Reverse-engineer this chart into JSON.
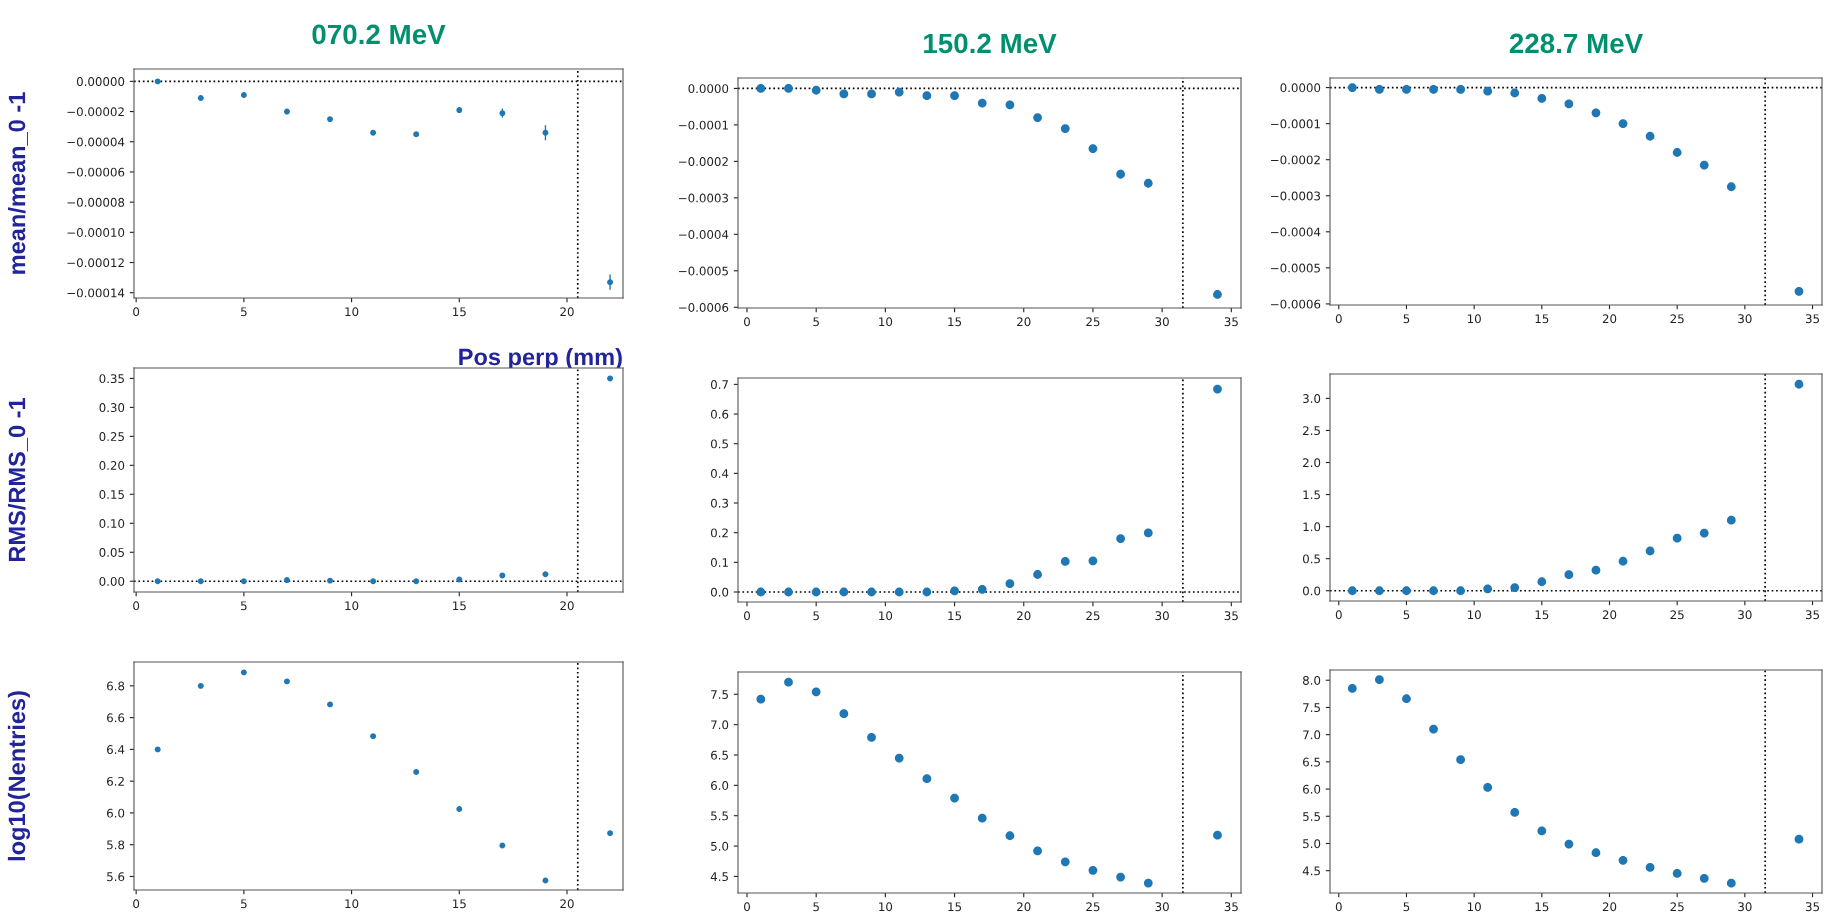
{
  "chart_data": [
    {
      "type": "scatter",
      "title": "070.2 MeV",
      "ylabel": "mean/mean_0 -1",
      "xlabel": "Pos perp (mm)",
      "marker": "circle",
      "grid": false,
      "x": [
        1,
        3,
        5,
        7,
        9,
        11,
        13,
        15,
        17,
        19,
        22
      ],
      "series": [
        {
          "color": "#1f77b4",
          "values": [
            0,
            -1.1e-05,
            -9e-06,
            -2e-05,
            -2.5e-05,
            -3.4e-05,
            -3.5e-05,
            -1.9e-05,
            -2.1e-05,
            -3.4e-05,
            -0.000133
          ],
          "errors": [
            null,
            null,
            null,
            null,
            null,
            null,
            1.5e-06,
            2e-06,
            3e-06,
            5e-06,
            5e-06
          ]
        }
      ],
      "xlim": [
        -0.1,
        22.6
      ],
      "xticks": [
        0,
        5,
        10,
        15,
        20
      ],
      "ylim": [
        -0.0001435,
        8.2e-06
      ],
      "yticks": [
        {
          "value": 0,
          "label": "0.00000"
        },
        {
          "value": -2e-05,
          "label": "−0.00002"
        },
        {
          "value": -4e-05,
          "label": "−0.00004"
        },
        {
          "value": -6e-05,
          "label": "−0.00006"
        },
        {
          "value": -8e-05,
          "label": "−0.00008"
        },
        {
          "value": -0.0001,
          "label": "−0.00010"
        },
        {
          "value": -0.00012,
          "label": "−0.00012"
        },
        {
          "value": -0.00014,
          "label": "−0.00014"
        }
      ],
      "ref_lines": [
        {
          "axis": "x",
          "value": 20.5,
          "color": "#000000",
          "line_style": "dotted"
        },
        {
          "axis": "y",
          "value": 0,
          "color": "#000000",
          "line_style": "dotted"
        }
      ]
    },
    {
      "type": "scatter",
      "title": "150.2 MeV",
      "marker": "circle",
      "grid": false,
      "x": [
        1,
        3,
        5,
        7,
        9,
        11,
        13,
        15,
        17,
        19,
        21,
        23,
        25,
        27,
        29,
        34
      ],
      "series": [
        {
          "color": "#1f77b4",
          "values": [
            0,
            0,
            -5e-06,
            -1.5e-05,
            -1.5e-05,
            -1e-05,
            -2e-05,
            -2e-05,
            -4e-05,
            -4.5e-05,
            -8e-05,
            -0.00011,
            -0.000165,
            -0.000235,
            -0.00026,
            -0.000565
          ],
          "errors": [
            null,
            null,
            null,
            null,
            null,
            null,
            null,
            null,
            null,
            null,
            null,
            5e-06,
            7e-06,
            1.2e-05,
            1.2e-05,
            5e-06
          ]
        }
      ],
      "xlim": [
        -0.65,
        35.7
      ],
      "xticks": [
        0,
        5,
        10,
        15,
        20,
        25,
        30,
        35
      ],
      "ylim": [
        -0.000602,
        2.86e-05
      ],
      "yticks": [
        {
          "value": 0,
          "label": "0.0000"
        },
        {
          "value": -0.0001,
          "label": "−0.0001"
        },
        {
          "value": -0.0002,
          "label": "−0.0002"
        },
        {
          "value": -0.0003,
          "label": "−0.0003"
        },
        {
          "value": -0.0004,
          "label": "−0.0004"
        },
        {
          "value": -0.0005,
          "label": "−0.0005"
        },
        {
          "value": -0.0006,
          "label": "−0.0006"
        }
      ],
      "ref_lines": [
        {
          "axis": "x",
          "value": 31.5,
          "color": "#000000",
          "line_style": "dotted"
        },
        {
          "axis": "y",
          "value": 0,
          "color": "#000000",
          "line_style": "dotted"
        }
      ]
    },
    {
      "type": "scatter",
      "title": "228.7 MeV",
      "marker": "circle",
      "grid": false,
      "x": [
        1,
        3,
        5,
        7,
        9,
        11,
        13,
        15,
        17,
        19,
        21,
        23,
        25,
        27,
        29,
        34
      ],
      "series": [
        {
          "color": "#1f77b4",
          "values": [
            0,
            -5e-06,
            -5e-06,
            -5e-06,
            -5e-06,
            -1e-05,
            -1.5e-05,
            -3e-05,
            -4.5e-05,
            -7e-05,
            -0.0001,
            -0.000135,
            -0.00018,
            -0.000215,
            -0.000275,
            -0.000565
          ]
        }
      ],
      "xlim": [
        -0.65,
        35.7
      ],
      "xticks": [
        0,
        5,
        10,
        15,
        20,
        25,
        30,
        35
      ],
      "ylim": [
        -0.000603,
        2.66e-05
      ],
      "yticks": [
        {
          "value": 0,
          "label": "0.0000"
        },
        {
          "value": -0.0001,
          "label": "−0.0001"
        },
        {
          "value": -0.0002,
          "label": "−0.0002"
        },
        {
          "value": -0.0003,
          "label": "−0.0003"
        },
        {
          "value": -0.0004,
          "label": "−0.0004"
        },
        {
          "value": -0.0005,
          "label": "−0.0005"
        },
        {
          "value": -0.0006,
          "label": "−0.0006"
        }
      ],
      "ref_lines": [
        {
          "axis": "x",
          "value": 31.5,
          "color": "#000000",
          "line_style": "dotted"
        },
        {
          "axis": "y",
          "value": 0,
          "color": "#000000",
          "line_style": "dotted"
        }
      ]
    },
    {
      "type": "scatter",
      "ylabel": "RMS/RMS_0 -1",
      "marker": "circle",
      "grid": false,
      "x": [
        1,
        3,
        5,
        7,
        9,
        11,
        13,
        15,
        17,
        19,
        22
      ],
      "series": [
        {
          "color": "#1f77b4",
          "values": [
            0,
            0,
            0,
            0.002,
            0.001,
            0,
            0,
            0.003,
            0.01,
            0.012,
            0.35
          ]
        }
      ],
      "xlim": [
        -0.1,
        22.6
      ],
      "xticks": [
        0,
        5,
        10,
        15,
        20
      ],
      "ylim": [
        -0.0186,
        0.368
      ],
      "yticks": [
        {
          "value": 0,
          "label": "0.00"
        },
        {
          "value": 0.05,
          "label": "0.05"
        },
        {
          "value": 0.1,
          "label": "0.10"
        },
        {
          "value": 0.15,
          "label": "0.15"
        },
        {
          "value": 0.2,
          "label": "0.20"
        },
        {
          "value": 0.25,
          "label": "0.25"
        },
        {
          "value": 0.3,
          "label": "0.30"
        },
        {
          "value": 0.35,
          "label": "0.35"
        }
      ],
      "ref_lines": [
        {
          "axis": "x",
          "value": 20.5,
          "color": "#000000",
          "line_style": "dotted"
        },
        {
          "axis": "y",
          "value": 0,
          "color": "#000000",
          "line_style": "dotted"
        }
      ]
    },
    {
      "type": "scatter",
      "marker": "circle",
      "grid": false,
      "x": [
        1,
        3,
        5,
        7,
        9,
        11,
        13,
        15,
        17,
        19,
        21,
        23,
        25,
        27,
        29,
        34
      ],
      "series": [
        {
          "color": "#1f77b4",
          "values": [
            0,
            0,
            0,
            0,
            0,
            0,
            0,
            0.004,
            0.009,
            0.028,
            0.059,
            0.103,
            0.105,
            0.18,
            0.199,
            0.684
          ]
        }
      ],
      "xlim": [
        -0.65,
        35.7
      ],
      "xticks": [
        0,
        5,
        10,
        15,
        20,
        25,
        30,
        35
      ],
      "ylim": [
        -0.0337,
        0.7215
      ],
      "yticks": [
        {
          "value": 0,
          "label": "0.0"
        },
        {
          "value": 0.1,
          "label": "0.1"
        },
        {
          "value": 0.2,
          "label": "0.2"
        },
        {
          "value": 0.3,
          "label": "0.3"
        },
        {
          "value": 0.4,
          "label": "0.4"
        },
        {
          "value": 0.5,
          "label": "0.5"
        },
        {
          "value": 0.6,
          "label": "0.6"
        },
        {
          "value": 0.7,
          "label": "0.7"
        }
      ],
      "ref_lines": [
        {
          "axis": "x",
          "value": 31.5,
          "color": "#000000",
          "line_style": "dotted"
        },
        {
          "axis": "y",
          "value": 0,
          "color": "#000000",
          "line_style": "dotted"
        }
      ]
    },
    {
      "type": "scatter",
      "marker": "circle",
      "grid": false,
      "x": [
        1,
        3,
        5,
        7,
        9,
        11,
        13,
        15,
        17,
        19,
        21,
        23,
        25,
        27,
        29,
        34
      ],
      "series": [
        {
          "color": "#1f77b4",
          "values": [
            0,
            0,
            0,
            0,
            0,
            0.03,
            0.05,
            0.14,
            0.25,
            0.32,
            0.46,
            0.62,
            0.82,
            0.9,
            1.1,
            3.22
          ]
        }
      ],
      "xlim": [
        -0.65,
        35.7
      ],
      "xticks": [
        0,
        5,
        10,
        15,
        20,
        25,
        30,
        35
      ],
      "ylim": [
        -0.16,
        3.38
      ],
      "yticks": [
        {
          "value": 0,
          "label": "0.0"
        },
        {
          "value": 0.5,
          "label": "0.5"
        },
        {
          "value": 1,
          "label": "1.0"
        },
        {
          "value": 1.5,
          "label": "1.5"
        },
        {
          "value": 2,
          "label": "2.0"
        },
        {
          "value": 2.5,
          "label": "2.5"
        },
        {
          "value": 3,
          "label": "3.0"
        }
      ],
      "ref_lines": [
        {
          "axis": "x",
          "value": 31.5,
          "color": "#000000",
          "line_style": "dotted"
        },
        {
          "axis": "y",
          "value": 0,
          "color": "#000000",
          "line_style": "dotted"
        }
      ]
    },
    {
      "type": "scatter",
      "ylabel": "log10(Nentries)",
      "marker": "circle",
      "grid": false,
      "x": [
        1,
        3,
        5,
        7,
        9,
        11,
        13,
        15,
        17,
        19,
        22
      ],
      "series": [
        {
          "color": "#1f77b4",
          "values": [
            6.4,
            6.8,
            6.885,
            6.828,
            6.683,
            6.483,
            6.258,
            6.025,
            5.795,
            5.575,
            5.873
          ]
        }
      ],
      "xlim": [
        -0.1,
        22.6
      ],
      "xticks": [
        0,
        5,
        10,
        15,
        20
      ],
      "ylim": [
        5.515,
        6.95
      ],
      "yticks": [
        {
          "value": 5.6,
          "label": "5.6"
        },
        {
          "value": 5.8,
          "label": "5.8"
        },
        {
          "value": 6,
          "label": "6.0"
        },
        {
          "value": 6.2,
          "label": "6.2"
        },
        {
          "value": 6.4,
          "label": "6.4"
        },
        {
          "value": 6.6,
          "label": "6.6"
        },
        {
          "value": 6.8,
          "label": "6.8"
        }
      ],
      "ref_lines": [
        {
          "axis": "x",
          "value": 20.5,
          "color": "#000000",
          "line_style": "dotted"
        }
      ]
    },
    {
      "type": "scatter",
      "marker": "circle",
      "grid": false,
      "x": [
        1,
        3,
        5,
        7,
        9,
        11,
        13,
        15,
        17,
        19,
        21,
        23,
        25,
        27,
        29,
        34
      ],
      "series": [
        {
          "color": "#1f77b4",
          "values": [
            7.42,
            7.7,
            7.54,
            7.18,
            6.79,
            6.45,
            6.11,
            5.79,
            5.46,
            5.17,
            4.92,
            4.74,
            4.6,
            4.49,
            4.39,
            5.18
          ]
        }
      ],
      "xlim": [
        -0.65,
        35.7
      ],
      "xticks": [
        0,
        5,
        10,
        15,
        20,
        25,
        30,
        35
      ],
      "ylim": [
        4.227,
        7.867
      ],
      "yticks": [
        {
          "value": 4.5,
          "label": "4.5"
        },
        {
          "value": 5,
          "label": "5.0"
        },
        {
          "value": 5.5,
          "label": "5.5"
        },
        {
          "value": 6,
          "label": "6.0"
        },
        {
          "value": 6.5,
          "label": "6.5"
        },
        {
          "value": 7,
          "label": "7.0"
        },
        {
          "value": 7.5,
          "label": "7.5"
        }
      ],
      "ref_lines": [
        {
          "axis": "x",
          "value": 31.5,
          "color": "#000000",
          "line_style": "dotted"
        }
      ]
    },
    {
      "type": "scatter",
      "marker": "circle",
      "grid": false,
      "x": [
        1,
        3,
        5,
        7,
        9,
        11,
        13,
        15,
        17,
        19,
        21,
        23,
        25,
        27,
        29,
        34
      ],
      "series": [
        {
          "color": "#1f77b4",
          "values": [
            7.85,
            8.01,
            7.66,
            7.1,
            6.54,
            6.03,
            5.57,
            5.23,
            4.99,
            4.83,
            4.69,
            4.56,
            4.45,
            4.36,
            4.27,
            5.08
          ]
        }
      ],
      "xlim": [
        -0.65,
        35.7
      ],
      "xticks": [
        0,
        5,
        10,
        15,
        20,
        25,
        30,
        35
      ],
      "ylim": [
        4.09,
        8.188
      ],
      "yticks": [
        {
          "value": 4.5,
          "label": "4.5"
        },
        {
          "value": 5,
          "label": "5.0"
        },
        {
          "value": 5.5,
          "label": "5.5"
        },
        {
          "value": 6,
          "label": "6.0"
        },
        {
          "value": 6.5,
          "label": "6.5"
        },
        {
          "value": 7,
          "label": "7.0"
        },
        {
          "value": 7.5,
          "label": "7.5"
        },
        {
          "value": 8,
          "label": "8.0"
        }
      ],
      "ref_lines": [
        {
          "axis": "x",
          "value": 31.5,
          "color": "#000000",
          "line_style": "dotted"
        }
      ]
    }
  ]
}
